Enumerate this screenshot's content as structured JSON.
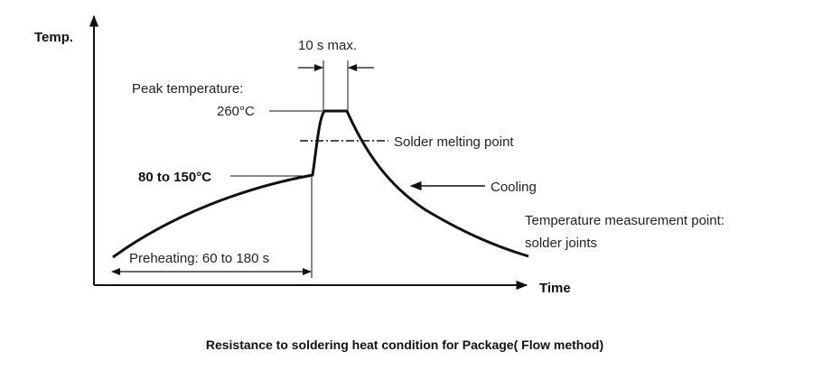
{
  "axes": {
    "y_label": "Temp.",
    "x_label": "Time"
  },
  "annotations": {
    "peak_duration": "10 s max.",
    "peak_temp_label": "Peak temperature:",
    "peak_temp_value": "260°C",
    "melting_point": "Solder melting point",
    "preheat_temp": "80 to 150°C",
    "cooling": "Cooling",
    "measurement_line1": "Temperature measurement point:",
    "measurement_line2": "solder joints",
    "preheating": "Preheating: 60 to 180 s"
  },
  "caption": "Resistance to soldering heat condition for Package( Flow method)"
}
